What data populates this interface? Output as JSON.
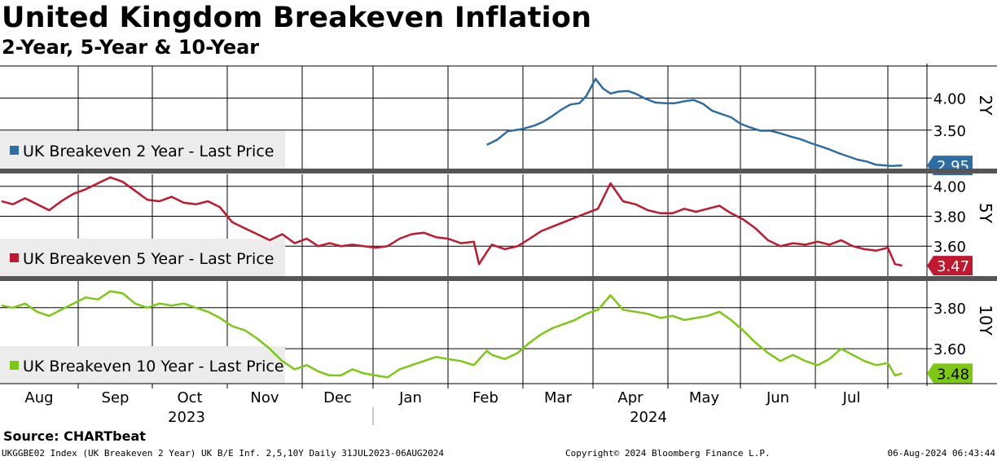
{
  "title": "United Kingdom Breakeven Inflation",
  "subtitle": "2-Year, 5-Year & 10-Year",
  "source": "Source:  CHARTbeat",
  "footer": {
    "left": "UKGGBE02 Index (UK Breakeven 2 Year) UK B/E Inf. 2,5,10Y  Daily 31JUL2023-06AUG2024",
    "center": "Copyright© 2024 Bloomberg Finance L.P.",
    "right": "06-Aug-2024 06:43:44"
  },
  "chart_data": {
    "type": "line",
    "x_axis": {
      "months": [
        "Aug",
        "Sep",
        "Oct",
        "Nov",
        "Dec",
        "Jan",
        "Feb",
        "Mar",
        "Apr",
        "May",
        "Jun",
        "Jul"
      ],
      "years": [
        "2023",
        "2024"
      ]
    },
    "panels": [
      {
        "id": "2y",
        "axis_label": "2Y",
        "legend": "UK Breakeven 2 Year - Last Price",
        "color": "#2e6da4",
        "last_value": "2.95",
        "ylim": [
          2.9,
          4.5
        ],
        "yticks": [
          "4.00",
          "3.50"
        ],
        "x": [
          "2024-02-16",
          "2024-02-20",
          "2024-02-24",
          "2024-03-01",
          "2024-03-06",
          "2024-03-10",
          "2024-03-14",
          "2024-03-18",
          "2024-03-22",
          "2024-03-26",
          "2024-03-29",
          "2024-04-02",
          "2024-04-05",
          "2024-04-08",
          "2024-04-11",
          "2024-04-15",
          "2024-04-18",
          "2024-04-22",
          "2024-04-26",
          "2024-04-30",
          "2024-05-04",
          "2024-05-08",
          "2024-05-12",
          "2024-05-16",
          "2024-05-20",
          "2024-05-24",
          "2024-05-28",
          "2024-06-01",
          "2024-06-05",
          "2024-06-09",
          "2024-06-13",
          "2024-06-17",
          "2024-06-21",
          "2024-06-25",
          "2024-06-29",
          "2024-07-03",
          "2024-07-07",
          "2024-07-11",
          "2024-07-15",
          "2024-07-19",
          "2024-07-23",
          "2024-07-27",
          "2024-07-31",
          "2024-08-02",
          "2024-08-05"
        ],
        "y": [
          3.27,
          3.35,
          3.48,
          3.52,
          3.57,
          3.63,
          3.72,
          3.82,
          3.9,
          3.92,
          4.03,
          4.3,
          4.15,
          4.07,
          4.1,
          4.11,
          4.07,
          3.99,
          3.93,
          3.92,
          3.92,
          3.95,
          3.97,
          3.91,
          3.8,
          3.75,
          3.7,
          3.6,
          3.54,
          3.49,
          3.49,
          3.45,
          3.4,
          3.36,
          3.3,
          3.25,
          3.2,
          3.14,
          3.09,
          3.04,
          3.01,
          2.96,
          2.95,
          2.94,
          2.95
        ]
      },
      {
        "id": "5y",
        "axis_label": "5Y",
        "legend": "UK Breakeven 5 Year - Last Price",
        "color": "#c0182f",
        "last_value": "3.47",
        "ylim": [
          3.4,
          4.08
        ],
        "yticks": [
          "4.00",
          "3.80",
          "3.60"
        ],
        "x": [
          "2023-07-31",
          "2023-08-05",
          "2023-08-10",
          "2023-08-15",
          "2023-08-20",
          "2023-08-25",
          "2023-08-30",
          "2023-09-04",
          "2023-09-09",
          "2023-09-14",
          "2023-09-19",
          "2023-09-24",
          "2023-09-29",
          "2023-10-04",
          "2023-10-09",
          "2023-10-14",
          "2023-10-19",
          "2023-10-24",
          "2023-10-29",
          "2023-11-03",
          "2023-11-08",
          "2023-11-13",
          "2023-11-18",
          "2023-11-23",
          "2023-11-28",
          "2023-12-03",
          "2023-12-08",
          "2023-12-13",
          "2023-12-18",
          "2023-12-23",
          "2023-12-28",
          "2024-01-02",
          "2024-01-07",
          "2024-01-12",
          "2024-01-17",
          "2024-01-22",
          "2024-01-27",
          "2024-02-01",
          "2024-02-06",
          "2024-02-11",
          "2024-02-13",
          "2024-02-16",
          "2024-02-18",
          "2024-02-23",
          "2024-02-28",
          "2024-03-04",
          "2024-03-09",
          "2024-03-14",
          "2024-03-19",
          "2024-03-24",
          "2024-03-29",
          "2024-04-03",
          "2024-04-08",
          "2024-04-13",
          "2024-04-18",
          "2024-04-23",
          "2024-04-28",
          "2024-05-03",
          "2024-05-08",
          "2024-05-13",
          "2024-05-18",
          "2024-05-23",
          "2024-05-28",
          "2024-06-02",
          "2024-06-07",
          "2024-06-12",
          "2024-06-17",
          "2024-06-22",
          "2024-06-27",
          "2024-07-02",
          "2024-07-07",
          "2024-07-12",
          "2024-07-17",
          "2024-07-22",
          "2024-07-27",
          "2024-08-01",
          "2024-08-03",
          "2024-08-05"
        ],
        "y": [
          3.9,
          3.88,
          3.92,
          3.88,
          3.84,
          3.9,
          3.95,
          3.98,
          4.02,
          4.06,
          4.03,
          3.97,
          3.91,
          3.9,
          3.93,
          3.89,
          3.88,
          3.9,
          3.86,
          3.76,
          3.72,
          3.68,
          3.64,
          3.68,
          3.62,
          3.65,
          3.6,
          3.62,
          3.6,
          3.61,
          3.6,
          3.59,
          3.6,
          3.65,
          3.68,
          3.69,
          3.66,
          3.65,
          3.62,
          3.63,
          3.48,
          3.56,
          3.61,
          3.58,
          3.6,
          3.65,
          3.7,
          3.73,
          3.76,
          3.79,
          3.82,
          3.85,
          4.02,
          3.9,
          3.88,
          3.84,
          3.82,
          3.82,
          3.85,
          3.83,
          3.85,
          3.87,
          3.82,
          3.78,
          3.72,
          3.64,
          3.6,
          3.62,
          3.61,
          3.63,
          3.61,
          3.64,
          3.6,
          3.58,
          3.57,
          3.59,
          3.48,
          3.47
        ]
      },
      {
        "id": "10y",
        "axis_label": "10Y",
        "legend": "UK Breakeven 10 Year - Last Price",
        "color": "#7cc813",
        "last_value": "3.48",
        "ylim": [
          3.43,
          3.93
        ],
        "yticks": [
          "3.80",
          "3.60"
        ],
        "x": [
          "2023-07-31",
          "2023-08-05",
          "2023-08-10",
          "2023-08-15",
          "2023-08-20",
          "2023-08-25",
          "2023-08-30",
          "2023-09-04",
          "2023-09-09",
          "2023-09-14",
          "2023-09-19",
          "2023-09-24",
          "2023-09-29",
          "2023-10-04",
          "2023-10-09",
          "2023-10-14",
          "2023-10-19",
          "2023-10-24",
          "2023-10-29",
          "2023-11-03",
          "2023-11-08",
          "2023-11-13",
          "2023-11-18",
          "2023-11-23",
          "2023-11-28",
          "2023-12-03",
          "2023-12-08",
          "2023-12-13",
          "2023-12-18",
          "2023-12-23",
          "2023-12-28",
          "2024-01-02",
          "2024-01-07",
          "2024-01-12",
          "2024-01-17",
          "2024-01-22",
          "2024-01-27",
          "2024-02-01",
          "2024-02-06",
          "2024-02-11",
          "2024-02-16",
          "2024-02-18",
          "2024-02-23",
          "2024-02-28",
          "2024-03-04",
          "2024-03-09",
          "2024-03-14",
          "2024-03-19",
          "2024-03-24",
          "2024-03-29",
          "2024-04-03",
          "2024-04-08",
          "2024-04-13",
          "2024-04-18",
          "2024-04-23",
          "2024-04-28",
          "2024-05-03",
          "2024-05-08",
          "2024-05-13",
          "2024-05-18",
          "2024-05-23",
          "2024-05-28",
          "2024-06-02",
          "2024-06-07",
          "2024-06-12",
          "2024-06-17",
          "2024-06-22",
          "2024-06-27",
          "2024-07-02",
          "2024-07-07",
          "2024-07-12",
          "2024-07-17",
          "2024-07-22",
          "2024-07-27",
          "2024-08-01",
          "2024-08-03",
          "2024-08-05"
        ],
        "y": [
          3.81,
          3.8,
          3.82,
          3.78,
          3.76,
          3.79,
          3.82,
          3.85,
          3.84,
          3.88,
          3.87,
          3.82,
          3.8,
          3.82,
          3.81,
          3.82,
          3.8,
          3.78,
          3.75,
          3.71,
          3.69,
          3.65,
          3.6,
          3.54,
          3.5,
          3.52,
          3.49,
          3.47,
          3.47,
          3.5,
          3.48,
          3.47,
          3.46,
          3.5,
          3.52,
          3.54,
          3.56,
          3.55,
          3.54,
          3.52,
          3.59,
          3.57,
          3.55,
          3.58,
          3.63,
          3.67,
          3.7,
          3.72,
          3.74,
          3.77,
          3.79,
          3.86,
          3.79,
          3.78,
          3.77,
          3.75,
          3.76,
          3.74,
          3.75,
          3.76,
          3.78,
          3.74,
          3.69,
          3.63,
          3.58,
          3.54,
          3.57,
          3.54,
          3.52,
          3.55,
          3.6,
          3.57,
          3.54,
          3.52,
          3.53,
          3.47,
          3.48
        ]
      }
    ]
  }
}
